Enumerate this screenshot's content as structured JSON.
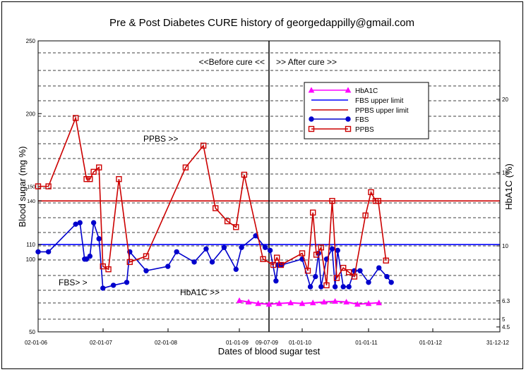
{
  "chart_data": {
    "type": "line",
    "title": "Pre & Post Diabetes CURE history of georgedappilly@gmail.com",
    "xlabel": "Dates of blood sugar test",
    "ylabel": "Blood sugar (mg %)",
    "y2label": "HbA1C (%)",
    "ylim": [
      50,
      250
    ],
    "y_ticks": [
      50,
      100,
      110,
      140,
      150,
      200,
      250
    ],
    "y2_ticks": [
      "4.5",
      "5",
      "6.3",
      "10",
      "15",
      "20"
    ],
    "x_ticks": [
      "02-01-06",
      "02-01-07",
      "02-01-08",
      "01-01-09",
      "09-07-09",
      "01-01-10",
      "01-01-11",
      "01-01-12",
      "31-12-12"
    ],
    "grid": true,
    "legend_position": "upper-right",
    "annotations": {
      "before_cure": "<<Before cure <<",
      "after_cure": ">> After cure >>",
      "ppbs_label": "PPBS >>",
      "fbs_label": "FBS> >",
      "hba1c_label": "HbA1C >>"
    },
    "reference_lines": [
      {
        "name": "FBS upper limit",
        "y": 110,
        "color": "#0000ff"
      },
      {
        "name": "PPBS upper limit",
        "y": 140,
        "color": "#cc0000"
      }
    ],
    "series": [
      {
        "name": "HbA1C",
        "color": "#ff00ff",
        "marker": "triangle",
        "x": [
          "2009-01-01",
          "2009-03-01",
          "2009-05-01",
          "2009-07-09",
          "2009-09-01",
          "2009-11-01",
          "2010-01-01",
          "2010-03-01",
          "2010-05-01",
          "2010-07-01",
          "2010-09-01",
          "2010-11-01",
          "2011-01-01",
          "2011-03-01"
        ],
        "values": [
          71.5,
          70.5,
          69.5,
          69.0,
          69.5,
          70.0,
          69.5,
          70.0,
          70.5,
          71.0,
          70.5,
          69.0,
          69.5,
          70.0
        ]
      },
      {
        "name": "FBS",
        "color": "#0000cc",
        "marker": "circle",
        "x": [
          "2006-01-02",
          "2006-03-01",
          "2006-08-01",
          "2006-08-25",
          "2006-09-20",
          "2006-10-01",
          "2006-10-20",
          "2006-11-10",
          "2006-12-10",
          "2007-01-01",
          "2007-03-01",
          "2007-05-15",
          "2007-06-01",
          "2007-09-01",
          "2008-01-01",
          "2008-02-15",
          "2008-05-15",
          "2008-07-15",
          "2008-08-15",
          "2008-10-15",
          "2008-12-15",
          "2009-01-15",
          "2009-04-15",
          "2009-06-15",
          "2009-07-15",
          "2009-08-15",
          "2009-08-25",
          "2009-09-15",
          "2010-01-01",
          "2010-02-15",
          "2010-03-15",
          "2010-04-01",
          "2010-04-15",
          "2010-05-15",
          "2010-06-15",
          "2010-07-01",
          "2010-07-15",
          "2010-08-15",
          "2010-09-15",
          "2010-10-15",
          "2010-11-15",
          "2011-01-01",
          "2011-03-01",
          "2011-04-15",
          "2011-05-10"
        ],
        "values": [
          105,
          105,
          124,
          125,
          100,
          100,
          102,
          125,
          114,
          80,
          82,
          84,
          105,
          92,
          95,
          105,
          98,
          107,
          98,
          108,
          93,
          108,
          116,
          108,
          106,
          85,
          96,
          96,
          100,
          81,
          88,
          104,
          81,
          100,
          107,
          81,
          106,
          81,
          81,
          92,
          92,
          84,
          94,
          88,
          84
        ]
      },
      {
        "name": "PPBS",
        "color": "#cc0000",
        "marker": "square",
        "x": [
          "2006-01-02",
          "2006-03-01",
          "2006-08-01",
          "2006-10-01",
          "2006-10-20",
          "2006-11-10",
          "2006-12-10",
          "2007-01-01",
          "2007-02-01",
          "2007-04-01",
          "2007-06-01",
          "2007-09-01",
          "2008-04-01",
          "2008-07-01",
          "2008-09-01",
          "2008-11-01",
          "2008-12-15",
          "2009-02-01",
          "2009-06-01",
          "2009-08-01",
          "2009-08-20",
          "2009-09-10",
          "2010-01-01",
          "2010-02-01",
          "2010-03-01",
          "2010-03-20",
          "2010-04-15",
          "2010-05-15",
          "2010-06-15",
          "2010-07-10",
          "2010-08-15",
          "2010-09-15",
          "2010-10-15",
          "2010-12-15",
          "2011-01-15",
          "2011-02-10",
          "2011-02-25",
          "2011-04-10"
        ],
        "values": [
          150,
          150,
          197,
          155,
          155,
          160,
          163,
          95,
          93,
          155,
          98,
          102,
          163,
          178,
          135,
          126,
          122,
          158,
          100,
          96,
          101,
          96,
          104,
          92,
          132,
          103,
          108,
          82,
          140,
          87,
          94,
          91,
          88,
          130,
          146,
          140,
          140,
          99
        ]
      }
    ]
  }
}
